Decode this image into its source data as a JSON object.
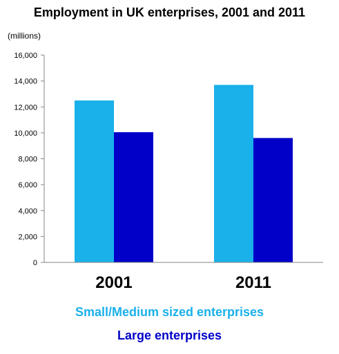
{
  "chart_data": {
    "type": "bar",
    "title": "Employment in UK enterprises, 2001 and 2011",
    "ylabel": "(millions)",
    "categories": [
      "2001",
      "2011"
    ],
    "series": [
      {
        "name": "Small/Medium sized enterprises",
        "values": [
          12500,
          13700
        ],
        "color": "#1ab0ea"
      },
      {
        "name": "Large enterprises",
        "values": [
          10050,
          9600
        ],
        "color": "#0000c8"
      }
    ],
    "ylim": [
      0,
      16000
    ],
    "yticks": [
      "0",
      "2,000",
      "4,000",
      "6,000",
      "8,000",
      "10,000",
      "12,000",
      "14,000",
      "16,000"
    ],
    "grid": false,
    "legend": "bottom"
  }
}
